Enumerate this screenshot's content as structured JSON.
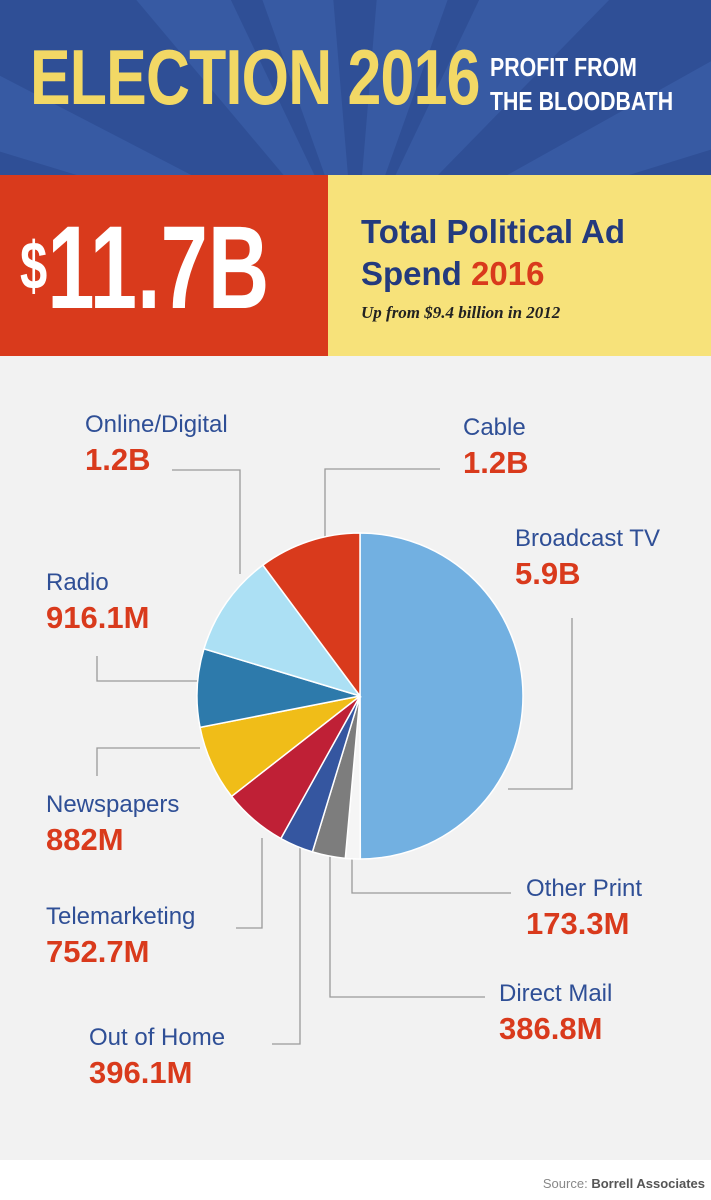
{
  "header": {
    "title": "ELECTION 2016",
    "subtitle_line1": "PROFIT FROM",
    "subtitle_line2": "THE BLOODBATH"
  },
  "total": {
    "dollar": "$",
    "amount": "11.7B",
    "label_main": "Total Political Ad Spend",
    "label_year": "2016",
    "note": "Up from $9.4 billion in 2012"
  },
  "colors": {
    "banner_blue": "#2f4f96",
    "red": "#d93a1c",
    "yellow": "#f7e27a",
    "headline_yellow": "#f2d865"
  },
  "chart_data": {
    "type": "pie",
    "categories": [
      "Broadcast TV",
      "Other Print",
      "Direct Mail",
      "Out of Home",
      "Telemarketing",
      "Newspapers",
      "Radio",
      "Online/Digital",
      "Cable"
    ],
    "labels": [
      "5.9B",
      "173.3M",
      "386.8M",
      "396.1M",
      "752.7M",
      "882M",
      "916.1M",
      "1.2B",
      "1.2B"
    ],
    "values": [
      5900,
      173.3,
      386.8,
      396.1,
      752.7,
      882,
      916.1,
      1200,
      1200
    ],
    "unit": "USD millions",
    "slice_colors": [
      "#72b0e1",
      "#f5f5f5",
      "#7d7d7d",
      "#3556a0",
      "#bf2036",
      "#f0bd18",
      "#2d7aab",
      "#ace0f4",
      "#d93a1c"
    ],
    "legend": "callout labels"
  },
  "footer": {
    "source_prefix": "Source: ",
    "source_name": "Borrell Associates"
  }
}
